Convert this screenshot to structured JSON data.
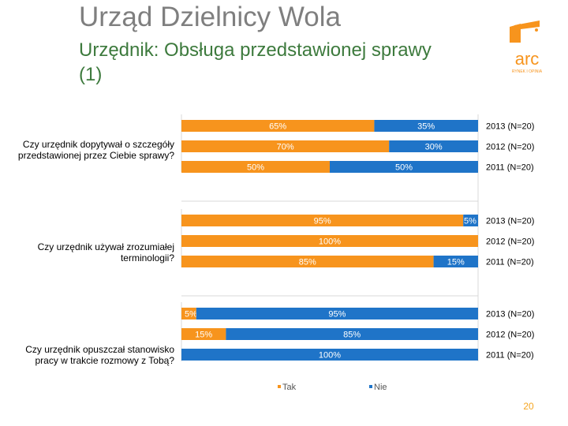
{
  "header": {
    "title": "Urząd Dzielnicy Wola",
    "subtitle": "Urzędnik: Obsługa przedstawionej sprawy (1)"
  },
  "logo": {
    "brand": "arc",
    "tagline": "RYNEK I OPINIA"
  },
  "colors": {
    "tak": "#f7941d",
    "nie": "#1f74c8",
    "title": "#7f7f7f",
    "subtitle": "#3d7a3d",
    "page": "#f5a623"
  },
  "chart_data": {
    "type": "bar",
    "orientation": "horizontal",
    "stacked": true,
    "percent_stacked": true,
    "series_names": [
      "Tak",
      "Nie"
    ],
    "legend": {
      "position": "bottom",
      "items": [
        "Tak",
        "Nie"
      ]
    },
    "groups": [
      {
        "question": "Czy urzędnik dopytywał o szczegóły przedstawionej przez Ciebie sprawy?",
        "rows": [
          {
            "label": "2013 (N=20)",
            "values": [
              65,
              35
            ],
            "value_labels": [
              "65%",
              "35%"
            ]
          },
          {
            "label": "2012 (N=20)",
            "values": [
              70,
              30
            ],
            "value_labels": [
              "70%",
              "30%"
            ]
          },
          {
            "label": "2011 (N=20)",
            "values": [
              50,
              50
            ],
            "value_labels": [
              "50%",
              "50%"
            ]
          }
        ]
      },
      {
        "question": "Czy urzędnik używał zrozumiałej terminologii?",
        "rows": [
          {
            "label": "2013 (N=20)",
            "values": [
              95,
              5
            ],
            "value_labels": [
              "95%",
              "5%"
            ]
          },
          {
            "label": "2012 (N=20)",
            "values": [
              100,
              0
            ],
            "value_labels": [
              "100%",
              ""
            ]
          },
          {
            "label": "2011 (N=20)",
            "values": [
              85,
              15
            ],
            "value_labels": [
              "85%",
              "15%"
            ]
          }
        ]
      },
      {
        "question": "Czy urzędnik opuszczał stanowisko pracy w trakcie rozmowy z Tobą?",
        "rows": [
          {
            "label": "2013 (N=20)",
            "values": [
              5,
              95
            ],
            "value_labels": [
              "5%",
              "95%"
            ]
          },
          {
            "label": "2012 (N=20)",
            "values": [
              15,
              85
            ],
            "value_labels": [
              "15%",
              "85%"
            ]
          },
          {
            "label": "2011 (N=20)",
            "values": [
              0,
              100
            ],
            "value_labels": [
              "",
              "100%"
            ]
          }
        ]
      }
    ]
  },
  "page_number": "20"
}
